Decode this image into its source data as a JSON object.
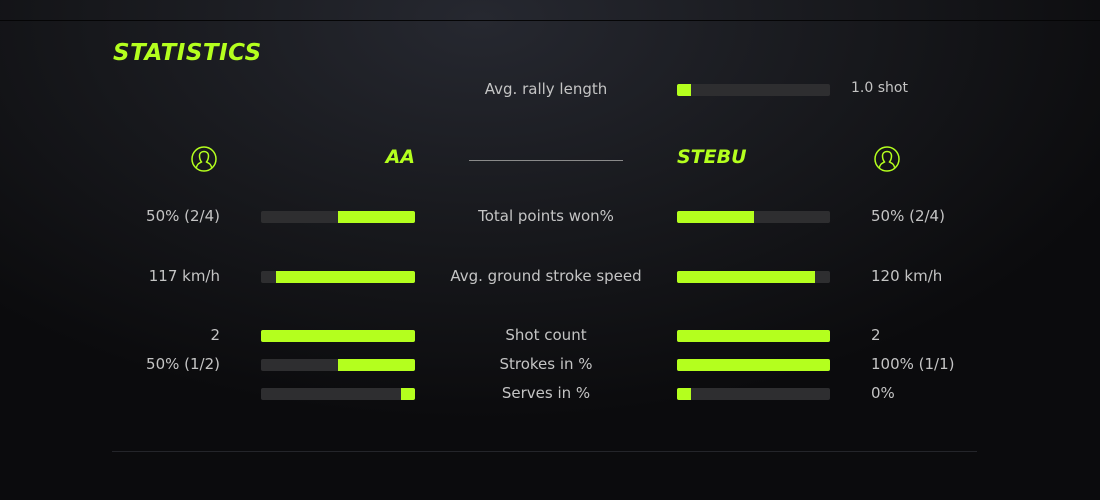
{
  "title": "STATISTICS",
  "accent": "#b4ff1e",
  "rally": {
    "label": "Avg. rally length",
    "value": "1.0 shot",
    "fill": 0.09
  },
  "players": {
    "left": {
      "name": "AA",
      "icon": "user-icon"
    },
    "right": {
      "name": "STEBU",
      "icon": "user-icon"
    }
  },
  "rows": [
    {
      "label": "Total points won%",
      "left": "50% (2/4)",
      "right": "50% (2/4)",
      "left_fill": 0.5,
      "right_fill": 0.5
    },
    {
      "label": "Avg. ground stroke speed",
      "left": "117 km/h",
      "right": "120 km/h",
      "left_fill": 0.9,
      "right_fill": 0.9
    },
    {
      "label": "Shot count",
      "left": "2",
      "right": "2",
      "left_fill": 1.0,
      "right_fill": 1.0
    },
    {
      "label": "Strokes in %",
      "left": "50% (1/2)",
      "right": "100% (1/1)",
      "left_fill": 0.5,
      "right_fill": 1.0
    },
    {
      "label": "Serves in %",
      "left": "",
      "right": "0%",
      "left_fill": 0.09,
      "right_fill": 0.09
    }
  ]
}
